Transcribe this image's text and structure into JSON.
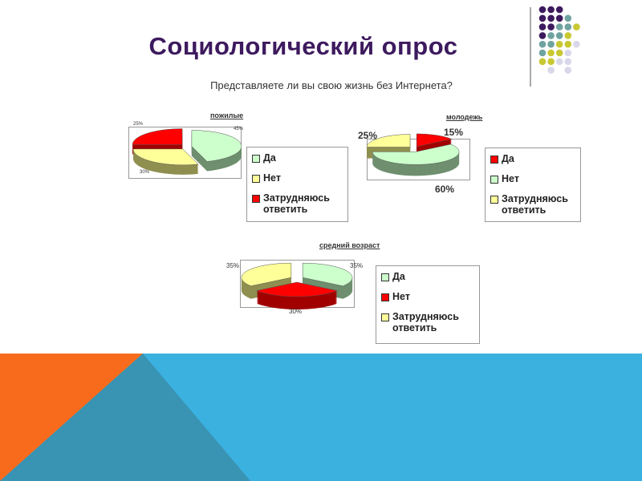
{
  "slide": {
    "title": "Социологический опрос",
    "subtitle": "Представляете ли вы свою жизнь без Интернета?"
  },
  "colors": {
    "title": "#3d1a5e",
    "green": "#ccffcc",
    "yellow": "#ffff99",
    "red": "#ff0000",
    "orange": "#f96b1c",
    "blue": "#3bb1e0",
    "dark_teal": "#3993b2",
    "dot_purple": "#3d1a5e",
    "dot_teal": "#6fa3a0",
    "dot_yellow": "#c8c832",
    "dot_lavender": "#d8d8ea"
  },
  "chart_data": [
    {
      "type": "pie",
      "title": "пожилые",
      "categories": [
        "Да",
        "Нет",
        "Затрудняюсь ответить"
      ],
      "values": [
        45,
        30,
        25
      ],
      "labels": [
        "45%",
        "30%",
        "25%"
      ],
      "colors": [
        "#ccffcc",
        "#ffff99",
        "#ff0000"
      ],
      "exploded": true,
      "legend": "right"
    },
    {
      "type": "pie",
      "title": "молодежь",
      "categories": [
        "Да",
        "Нет",
        "Затрудняюсь ответить"
      ],
      "values": [
        15,
        60,
        25
      ],
      "labels": [
        "15%",
        "60%",
        "25%"
      ],
      "colors": [
        "#ff0000",
        "#ccffcc",
        "#ffff99"
      ],
      "exploded": true,
      "legend": "right"
    },
    {
      "type": "pie",
      "title": "средний возраст",
      "categories": [
        "Да",
        "Нет",
        "Затрудняюсь ответить"
      ],
      "values": [
        35,
        30,
        35
      ],
      "labels": [
        "35%",
        "30%",
        "35%"
      ],
      "colors": [
        "#ccffcc",
        "#ff0000",
        "#ffff99"
      ],
      "exploded": true,
      "legend": "right"
    }
  ]
}
